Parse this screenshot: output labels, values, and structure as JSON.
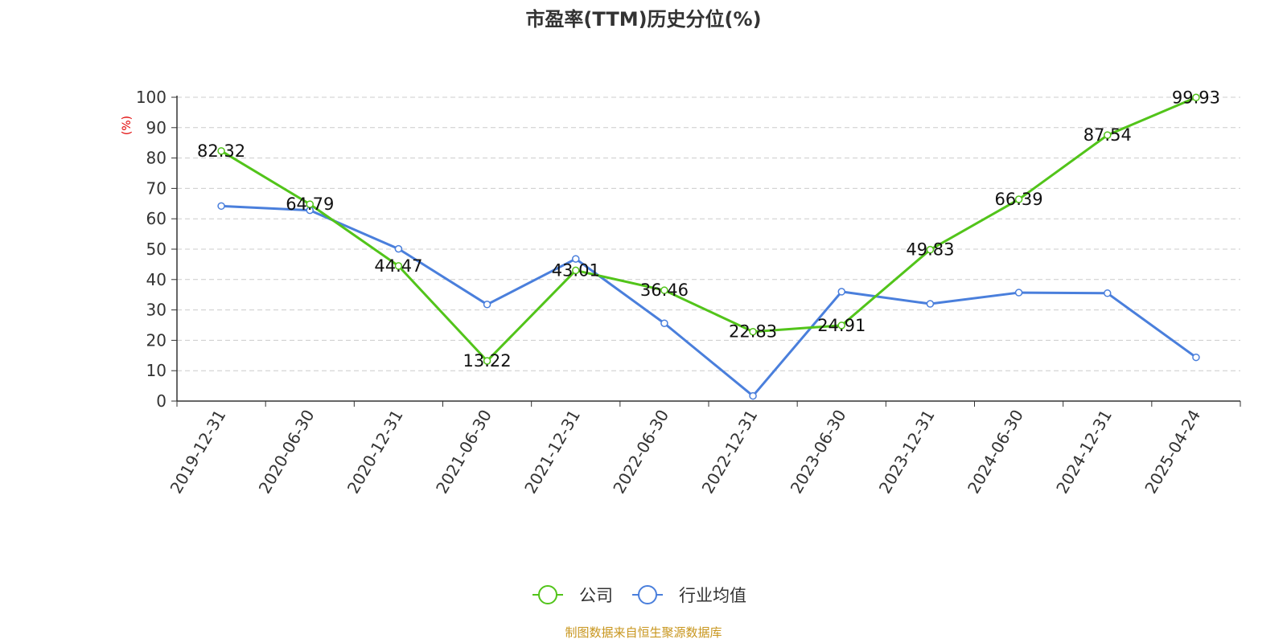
{
  "chart_data": {
    "type": "line",
    "title": "市盈率(TTM)历史分位(%)",
    "ylabel": "(%)",
    "ylim": [
      0,
      100
    ],
    "yticks": [
      0,
      10,
      20,
      30,
      40,
      50,
      60,
      70,
      80,
      90,
      100
    ],
    "grid": true,
    "legend_position": "bottom",
    "categories": [
      "2019-12-31",
      "2020-06-30",
      "2020-12-31",
      "2021-06-30",
      "2021-12-31",
      "2022-06-30",
      "2022-12-31",
      "2023-06-30",
      "2023-12-31",
      "2024-06-30",
      "2024-12-31",
      "2025-04-24"
    ],
    "series": [
      {
        "name": "公司",
        "color": "#52c41a",
        "show_labels": true,
        "values": [
          82.32,
          64.79,
          44.47,
          13.22,
          43.01,
          36.46,
          22.83,
          24.91,
          49.83,
          66.39,
          87.54,
          99.93
        ]
      },
      {
        "name": "行业均值",
        "color": "#4a7fdc",
        "show_labels": false,
        "values": [
          64.2,
          62.8,
          50.1,
          31.8,
          46.8,
          25.6,
          1.7,
          36.0,
          32.0,
          35.7,
          35.5,
          14.4
        ]
      }
    ],
    "source": "制图数据来自恒生聚源数据库"
  }
}
